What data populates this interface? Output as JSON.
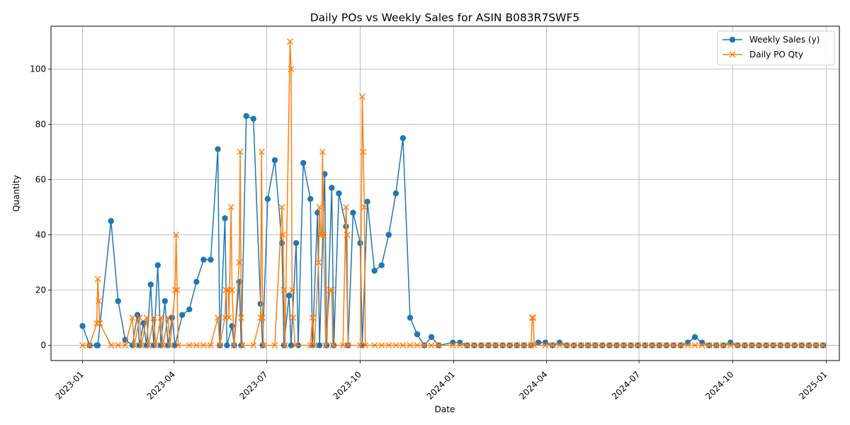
{
  "chart_data": {
    "type": "line",
    "title": "Daily POs vs Weekly Sales for ASIN B083R7SWF5",
    "xlabel": "Date",
    "ylabel": "Quantity",
    "x_range": [
      "2022-12-01",
      "2025-01-14"
    ],
    "ylim": [
      -5.5,
      115.5
    ],
    "x_ticks": [
      "2023-01",
      "2023-04",
      "2023-07",
      "2023-10",
      "2024-01",
      "2024-04",
      "2024-07",
      "2024-10",
      "2025-01"
    ],
    "x_tick_dates": [
      "2023-01-01",
      "2023-04-01",
      "2023-07-01",
      "2023-10-01",
      "2024-01-01",
      "2024-04-01",
      "2024-07-01",
      "2024-10-01",
      "2025-01-01"
    ],
    "y_ticks": [
      0,
      20,
      40,
      60,
      80,
      100
    ],
    "grid": true,
    "legend_position": "top-right",
    "series": [
      {
        "name": "Weekly Sales (y)",
        "color": "#1f77b4",
        "marker": "circle",
        "points": [
          [
            "2023-01-01",
            7
          ],
          [
            "2023-01-08",
            0
          ],
          [
            "2023-01-15",
            0
          ],
          [
            "2023-01-16",
            0
          ],
          [
            "2023-01-29",
            45
          ],
          [
            "2023-02-05",
            16
          ],
          [
            "2023-02-12",
            2
          ],
          [
            "2023-02-19",
            0
          ],
          [
            "2023-02-24",
            11
          ],
          [
            "2023-02-26",
            0
          ],
          [
            "2023-03-02",
            8
          ],
          [
            "2023-03-05",
            0
          ],
          [
            "2023-03-09",
            22
          ],
          [
            "2023-03-12",
            0
          ],
          [
            "2023-03-16",
            29
          ],
          [
            "2023-03-19",
            0
          ],
          [
            "2023-03-23",
            16
          ],
          [
            "2023-03-26",
            0
          ],
          [
            "2023-03-30",
            10
          ],
          [
            "2023-04-02",
            0
          ],
          [
            "2023-04-09",
            11
          ],
          [
            "2023-04-16",
            13
          ],
          [
            "2023-04-23",
            23
          ],
          [
            "2023-04-30",
            31
          ],
          [
            "2023-05-07",
            31
          ],
          [
            "2023-05-14",
            71
          ],
          [
            "2023-05-16",
            0
          ],
          [
            "2023-05-21",
            46
          ],
          [
            "2023-05-23",
            0
          ],
          [
            "2023-05-28",
            7
          ],
          [
            "2023-05-30",
            0
          ],
          [
            "2023-06-04",
            23
          ],
          [
            "2023-06-06",
            0
          ],
          [
            "2023-06-11",
            83
          ],
          [
            "2023-06-18",
            82
          ],
          [
            "2023-06-25",
            15
          ],
          [
            "2023-06-27",
            0
          ],
          [
            "2023-07-02",
            53
          ],
          [
            "2023-07-09",
            67
          ],
          [
            "2023-07-16",
            37
          ],
          [
            "2023-07-18",
            0
          ],
          [
            "2023-07-23",
            18
          ],
          [
            "2023-07-25",
            0
          ],
          [
            "2023-07-30",
            37
          ],
          [
            "2023-08-01",
            0
          ],
          [
            "2023-08-06",
            66
          ],
          [
            "2023-08-13",
            53
          ],
          [
            "2023-08-15",
            0
          ],
          [
            "2023-08-20",
            48
          ],
          [
            "2023-08-22",
            0
          ],
          [
            "2023-08-27",
            62
          ],
          [
            "2023-08-29",
            0
          ],
          [
            "2023-09-03",
            57
          ],
          [
            "2023-09-05",
            0
          ],
          [
            "2023-09-10",
            55
          ],
          [
            "2023-09-17",
            43
          ],
          [
            "2023-09-19",
            0
          ],
          [
            "2023-09-24",
            48
          ],
          [
            "2023-10-01",
            37
          ],
          [
            "2023-10-03",
            0
          ],
          [
            "2023-10-08",
            52
          ],
          [
            "2023-10-15",
            27
          ],
          [
            "2023-10-22",
            29
          ],
          [
            "2023-10-29",
            40
          ],
          [
            "2023-11-05",
            55
          ],
          [
            "2023-11-12",
            75
          ],
          [
            "2023-11-19",
            10
          ],
          [
            "2023-11-26",
            4
          ],
          [
            "2023-12-03",
            0
          ],
          [
            "2023-12-10",
            3
          ],
          [
            "2023-12-17",
            0
          ],
          [
            "2023-12-31",
            1
          ],
          [
            "2024-01-07",
            1
          ],
          [
            "2024-01-14",
            0
          ],
          [
            "2024-01-21",
            0
          ],
          [
            "2024-01-28",
            0
          ],
          [
            "2024-02-04",
            0
          ],
          [
            "2024-02-11",
            0
          ],
          [
            "2024-02-18",
            0
          ],
          [
            "2024-02-25",
            0
          ],
          [
            "2024-03-03",
            0
          ],
          [
            "2024-03-10",
            0
          ],
          [
            "2024-03-17",
            0
          ],
          [
            "2024-03-24",
            1
          ],
          [
            "2024-03-31",
            1
          ],
          [
            "2024-04-07",
            0
          ],
          [
            "2024-04-14",
            1
          ],
          [
            "2024-04-21",
            0
          ],
          [
            "2024-04-28",
            0
          ],
          [
            "2024-05-05",
            0
          ],
          [
            "2024-05-12",
            0
          ],
          [
            "2024-05-19",
            0
          ],
          [
            "2024-05-26",
            0
          ],
          [
            "2024-06-02",
            0
          ],
          [
            "2024-06-09",
            0
          ],
          [
            "2024-06-16",
            0
          ],
          [
            "2024-06-23",
            0
          ],
          [
            "2024-06-30",
            0
          ],
          [
            "2024-07-07",
            0
          ],
          [
            "2024-07-14",
            0
          ],
          [
            "2024-07-21",
            0
          ],
          [
            "2024-07-28",
            0
          ],
          [
            "2024-08-04",
            0
          ],
          [
            "2024-08-11",
            0
          ],
          [
            "2024-08-18",
            1
          ],
          [
            "2024-08-25",
            3
          ],
          [
            "2024-09-01",
            1
          ],
          [
            "2024-09-08",
            0
          ],
          [
            "2024-09-15",
            0
          ],
          [
            "2024-09-22",
            0
          ],
          [
            "2024-09-29",
            1
          ],
          [
            "2024-10-06",
            0
          ],
          [
            "2024-10-13",
            0
          ],
          [
            "2024-10-20",
            0
          ],
          [
            "2024-10-27",
            0
          ],
          [
            "2024-11-03",
            0
          ],
          [
            "2024-11-10",
            0
          ],
          [
            "2024-11-17",
            0
          ],
          [
            "2024-11-24",
            0
          ],
          [
            "2024-12-01",
            0
          ],
          [
            "2024-12-08",
            0
          ],
          [
            "2024-12-15",
            0
          ],
          [
            "2024-12-22",
            0
          ],
          [
            "2024-12-29",
            0
          ]
        ]
      },
      {
        "name": "Daily PO Qty",
        "color": "#ff7f0e",
        "marker": "x",
        "points": [
          [
            "2023-01-01",
            0
          ],
          [
            "2023-01-08",
            0
          ],
          [
            "2023-01-15",
            8
          ],
          [
            "2023-01-16",
            24
          ],
          [
            "2023-01-17",
            16
          ],
          [
            "2023-01-18",
            8
          ],
          [
            "2023-01-29",
            0
          ],
          [
            "2023-02-05",
            0
          ],
          [
            "2023-02-12",
            0
          ],
          [
            "2023-02-19",
            10
          ],
          [
            "2023-02-21",
            0
          ],
          [
            "2023-02-26",
            10
          ],
          [
            "2023-02-28",
            0
          ],
          [
            "2023-03-05",
            10
          ],
          [
            "2023-03-07",
            0
          ],
          [
            "2023-03-12",
            10
          ],
          [
            "2023-03-14",
            0
          ],
          [
            "2023-03-19",
            10
          ],
          [
            "2023-03-21",
            0
          ],
          [
            "2023-03-26",
            10
          ],
          [
            "2023-03-28",
            0
          ],
          [
            "2023-04-02",
            20
          ],
          [
            "2023-04-03",
            40
          ],
          [
            "2023-04-04",
            20
          ],
          [
            "2023-04-05",
            0
          ],
          [
            "2023-04-16",
            0
          ],
          [
            "2023-04-23",
            0
          ],
          [
            "2023-04-30",
            0
          ],
          [
            "2023-05-07",
            0
          ],
          [
            "2023-05-14",
            10
          ],
          [
            "2023-05-16",
            0
          ],
          [
            "2023-05-21",
            10
          ],
          [
            "2023-05-22",
            20
          ],
          [
            "2023-05-24",
            20
          ],
          [
            "2023-05-25",
            10
          ],
          [
            "2023-05-27",
            50
          ],
          [
            "2023-05-28",
            20
          ],
          [
            "2023-05-30",
            0
          ],
          [
            "2023-06-04",
            30
          ],
          [
            "2023-06-05",
            70
          ],
          [
            "2023-06-06",
            10
          ],
          [
            "2023-06-07",
            0
          ],
          [
            "2023-06-18",
            0
          ],
          [
            "2023-06-25",
            10
          ],
          [
            "2023-06-26",
            70
          ],
          [
            "2023-06-27",
            10
          ],
          [
            "2023-06-28",
            0
          ],
          [
            "2023-07-09",
            0
          ],
          [
            "2023-07-16",
            50
          ],
          [
            "2023-07-17",
            40
          ],
          [
            "2023-07-18",
            20
          ],
          [
            "2023-07-19",
            0
          ],
          [
            "2023-07-24",
            110
          ],
          [
            "2023-07-25",
            100
          ],
          [
            "2023-07-26",
            20
          ],
          [
            "2023-07-27",
            10
          ],
          [
            "2023-07-29",
            0
          ],
          [
            "2023-08-13",
            0
          ],
          [
            "2023-08-15",
            10
          ],
          [
            "2023-08-17",
            0
          ],
          [
            "2023-08-21",
            30
          ],
          [
            "2023-08-22",
            50
          ],
          [
            "2023-08-23",
            40
          ],
          [
            "2023-08-24",
            40
          ],
          [
            "2023-08-25",
            70
          ],
          [
            "2023-08-26",
            40
          ],
          [
            "2023-08-28",
            0
          ],
          [
            "2023-09-01",
            20
          ],
          [
            "2023-09-03",
            20
          ],
          [
            "2023-09-04",
            0
          ],
          [
            "2023-09-14",
            0
          ],
          [
            "2023-09-17",
            50
          ],
          [
            "2023-09-18",
            40
          ],
          [
            "2023-09-19",
            0
          ],
          [
            "2023-10-01",
            0
          ],
          [
            "2023-10-03",
            90
          ],
          [
            "2023-10-04",
            70
          ],
          [
            "2023-10-05",
            50
          ],
          [
            "2023-10-06",
            0
          ],
          [
            "2023-10-15",
            0
          ],
          [
            "2023-10-22",
            0
          ],
          [
            "2023-10-29",
            0
          ],
          [
            "2023-11-05",
            0
          ],
          [
            "2023-11-12",
            0
          ],
          [
            "2023-11-19",
            0
          ],
          [
            "2023-11-26",
            0
          ],
          [
            "2023-12-03",
            0
          ],
          [
            "2023-12-10",
            0
          ],
          [
            "2023-12-17",
            0
          ],
          [
            "2023-12-31",
            0
          ],
          [
            "2024-01-07",
            0
          ],
          [
            "2024-01-14",
            0
          ],
          [
            "2024-01-21",
            0
          ],
          [
            "2024-01-28",
            0
          ],
          [
            "2024-02-04",
            0
          ],
          [
            "2024-02-11",
            0
          ],
          [
            "2024-02-18",
            0
          ],
          [
            "2024-02-25",
            0
          ],
          [
            "2024-03-03",
            0
          ],
          [
            "2024-03-10",
            0
          ],
          [
            "2024-03-17",
            0
          ],
          [
            "2024-03-18",
            10
          ],
          [
            "2024-03-19",
            10
          ],
          [
            "2024-03-20",
            0
          ],
          [
            "2024-03-31",
            0
          ],
          [
            "2024-04-07",
            0
          ],
          [
            "2024-04-14",
            0
          ],
          [
            "2024-04-21",
            0
          ],
          [
            "2024-04-28",
            0
          ],
          [
            "2024-05-05",
            0
          ],
          [
            "2024-05-12",
            0
          ],
          [
            "2024-05-19",
            0
          ],
          [
            "2024-05-26",
            0
          ],
          [
            "2024-06-02",
            0
          ],
          [
            "2024-06-09",
            0
          ],
          [
            "2024-06-16",
            0
          ],
          [
            "2024-06-23",
            0
          ],
          [
            "2024-06-30",
            0
          ],
          [
            "2024-07-07",
            0
          ],
          [
            "2024-07-14",
            0
          ],
          [
            "2024-07-21",
            0
          ],
          [
            "2024-07-28",
            0
          ],
          [
            "2024-08-04",
            0
          ],
          [
            "2024-08-11",
            0
          ],
          [
            "2024-08-18",
            0
          ],
          [
            "2024-08-25",
            0
          ],
          [
            "2024-09-01",
            0
          ],
          [
            "2024-09-08",
            0
          ],
          [
            "2024-09-15",
            0
          ],
          [
            "2024-09-22",
            0
          ],
          [
            "2024-09-29",
            0
          ],
          [
            "2024-10-06",
            0
          ],
          [
            "2024-10-13",
            0
          ],
          [
            "2024-10-20",
            0
          ],
          [
            "2024-10-27",
            0
          ],
          [
            "2024-11-03",
            0
          ],
          [
            "2024-11-10",
            0
          ],
          [
            "2024-11-17",
            0
          ],
          [
            "2024-11-24",
            0
          ],
          [
            "2024-12-01",
            0
          ],
          [
            "2024-12-08",
            0
          ],
          [
            "2024-12-15",
            0
          ],
          [
            "2024-12-22",
            0
          ],
          [
            "2024-12-29",
            0
          ]
        ]
      }
    ]
  }
}
